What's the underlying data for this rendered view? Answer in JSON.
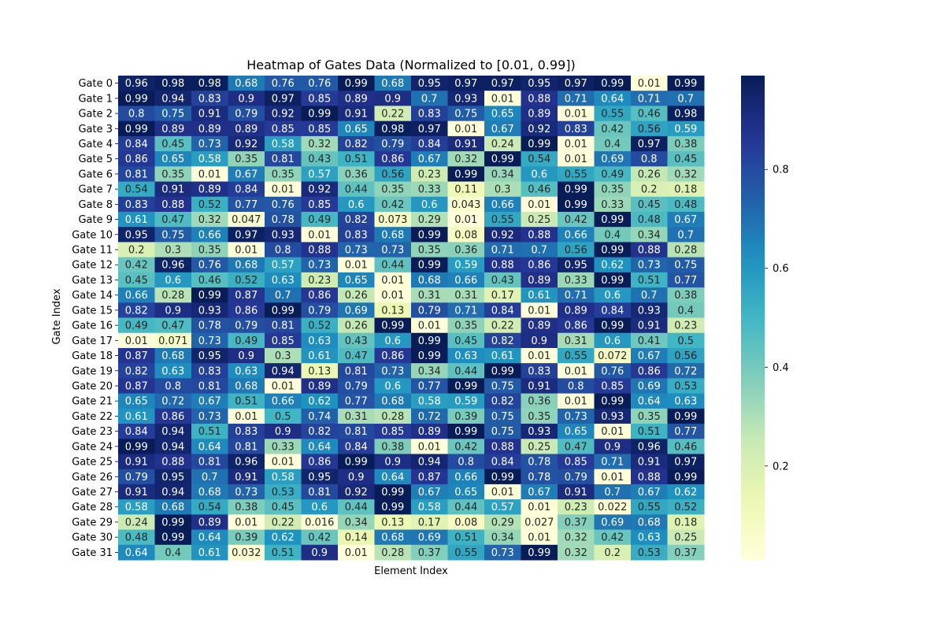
{
  "chart_data": {
    "type": "heatmap",
    "title": "Heatmap of Gates Data (Normalized to [0.01, 0.99])",
    "xlabel": "Element Index",
    "ylabel": "Gate Index",
    "rows": [
      "Gate 0",
      "Gate 1",
      "Gate 2",
      "Gate 3",
      "Gate 4",
      "Gate 5",
      "Gate 6",
      "Gate 7",
      "Gate 8",
      "Gate 9",
      "Gate 10",
      "Gate 11",
      "Gate 12",
      "Gate 13",
      "Gate 14",
      "Gate 15",
      "Gate 16",
      "Gate 17",
      "Gate 18",
      "Gate 19",
      "Gate 20",
      "Gate 21",
      "Gate 22",
      "Gate 23",
      "Gate 24",
      "Gate 25",
      "Gate 26",
      "Gate 27",
      "Gate 28",
      "Gate 29",
      "Gate 30",
      "Gate 31"
    ],
    "values": [
      [
        0.96,
        0.98,
        0.98,
        0.68,
        0.76,
        0.76,
        0.99,
        0.68,
        0.95,
        0.97,
        0.97,
        0.95,
        0.97,
        0.99,
        0.01,
        0.99
      ],
      [
        0.99,
        0.94,
        0.83,
        0.9,
        0.97,
        0.85,
        0.89,
        0.9,
        0.7,
        0.93,
        0.01,
        0.88,
        0.71,
        0.64,
        0.71,
        0.7
      ],
      [
        0.8,
        0.75,
        0.91,
        0.79,
        0.92,
        0.99,
        0.91,
        0.22,
        0.83,
        0.75,
        0.65,
        0.89,
        0.01,
        0.55,
        0.46,
        0.98
      ],
      [
        0.99,
        0.89,
        0.89,
        0.89,
        0.85,
        0.85,
        0.65,
        0.98,
        0.97,
        0.01,
        0.67,
        0.92,
        0.83,
        0.42,
        0.56,
        0.59
      ],
      [
        0.84,
        0.45,
        0.73,
        0.92,
        0.58,
        0.32,
        0.82,
        0.79,
        0.84,
        0.91,
        0.24,
        0.99,
        0.01,
        0.4,
        0.97,
        0.38
      ],
      [
        0.86,
        0.65,
        0.58,
        0.35,
        0.81,
        0.43,
        0.51,
        0.86,
        0.67,
        0.32,
        0.99,
        0.54,
        0.01,
        0.69,
        0.8,
        0.45
      ],
      [
        0.81,
        0.35,
        0.01,
        0.67,
        0.35,
        0.57,
        0.36,
        0.56,
        0.23,
        0.99,
        0.34,
        0.6,
        0.55,
        0.49,
        0.26,
        0.32
      ],
      [
        0.54,
        0.91,
        0.89,
        0.84,
        0.01,
        0.92,
        0.44,
        0.35,
        0.33,
        0.11,
        0.3,
        0.46,
        0.99,
        0.35,
        0.2,
        0.18
      ],
      [
        0.83,
        0.88,
        0.52,
        0.77,
        0.76,
        0.85,
        0.6,
        0.42,
        0.6,
        0.043,
        0.66,
        0.01,
        0.99,
        0.33,
        0.45,
        0.48
      ],
      [
        0.61,
        0.47,
        0.32,
        0.047,
        0.78,
        0.49,
        0.82,
        0.073,
        0.29,
        0.01,
        0.55,
        0.25,
        0.42,
        0.99,
        0.48,
        0.67
      ],
      [
        0.95,
        0.75,
        0.66,
        0.97,
        0.93,
        0.01,
        0.83,
        0.68,
        0.99,
        0.08,
        0.92,
        0.88,
        0.66,
        0.4,
        0.34,
        0.7
      ],
      [
        0.2,
        0.3,
        0.35,
        0.01,
        0.8,
        0.88,
        0.73,
        0.73,
        0.35,
        0.36,
        0.71,
        0.7,
        0.56,
        0.99,
        0.88,
        0.28
      ],
      [
        0.42,
        0.96,
        0.76,
        0.68,
        0.57,
        0.73,
        0.01,
        0.44,
        0.99,
        0.59,
        0.88,
        0.86,
        0.95,
        0.62,
        0.73,
        0.75
      ],
      [
        0.45,
        0.6,
        0.46,
        0.52,
        0.63,
        0.23,
        0.65,
        0.01,
        0.68,
        0.66,
        0.43,
        0.89,
        0.33,
        0.99,
        0.51,
        0.77
      ],
      [
        0.66,
        0.28,
        0.99,
        0.87,
        0.7,
        0.86,
        0.26,
        0.01,
        0.31,
        0.31,
        0.17,
        0.61,
        0.71,
        0.6,
        0.7,
        0.38
      ],
      [
        0.82,
        0.9,
        0.93,
        0.86,
        0.99,
        0.79,
        0.69,
        0.13,
        0.79,
        0.71,
        0.84,
        0.01,
        0.89,
        0.84,
        0.93,
        0.4
      ],
      [
        0.49,
        0.47,
        0.78,
        0.79,
        0.81,
        0.52,
        0.26,
        0.99,
        0.01,
        0.35,
        0.22,
        0.89,
        0.86,
        0.99,
        0.91,
        0.23
      ],
      [
        0.01,
        0.071,
        0.73,
        0.49,
        0.85,
        0.63,
        0.43,
        0.6,
        0.99,
        0.45,
        0.82,
        0.9,
        0.31,
        0.6,
        0.41,
        0.5
      ],
      [
        0.87,
        0.68,
        0.95,
        0.9,
        0.3,
        0.61,
        0.47,
        0.86,
        0.99,
        0.63,
        0.61,
        0.01,
        0.55,
        0.072,
        0.67,
        0.56
      ],
      [
        0.82,
        0.63,
        0.83,
        0.63,
        0.94,
        0.13,
        0.81,
        0.73,
        0.34,
        0.44,
        0.99,
        0.83,
        0.01,
        0.76,
        0.86,
        0.72
      ],
      [
        0.87,
        0.8,
        0.81,
        0.68,
        0.01,
        0.89,
        0.79,
        0.6,
        0.77,
        0.99,
        0.75,
        0.91,
        0.8,
        0.85,
        0.69,
        0.53
      ],
      [
        0.65,
        0.72,
        0.67,
        0.51,
        0.66,
        0.62,
        0.77,
        0.68,
        0.58,
        0.59,
        0.82,
        0.36,
        0.01,
        0.99,
        0.64,
        0.63
      ],
      [
        0.61,
        0.86,
        0.73,
        0.01,
        0.5,
        0.74,
        0.31,
        0.28,
        0.72,
        0.39,
        0.75,
        0.35,
        0.73,
        0.93,
        0.35,
        0.99
      ],
      [
        0.84,
        0.94,
        0.51,
        0.83,
        0.9,
        0.82,
        0.81,
        0.85,
        0.89,
        0.99,
        0.75,
        0.93,
        0.65,
        0.01,
        0.51,
        0.77
      ],
      [
        0.99,
        0.94,
        0.64,
        0.81,
        0.33,
        0.64,
        0.84,
        0.38,
        0.01,
        0.42,
        0.88,
        0.25,
        0.47,
        0.9,
        0.96,
        0.46
      ],
      [
        0.91,
        0.88,
        0.81,
        0.96,
        0.01,
        0.86,
        0.99,
        0.9,
        0.94,
        0.8,
        0.84,
        0.78,
        0.85,
        0.71,
        0.91,
        0.97
      ],
      [
        0.79,
        0.95,
        0.7,
        0.91,
        0.58,
        0.95,
        0.9,
        0.64,
        0.87,
        0.66,
        0.99,
        0.78,
        0.79,
        0.01,
        0.88,
        0.99
      ],
      [
        0.91,
        0.94,
        0.68,
        0.73,
        0.53,
        0.81,
        0.92,
        0.99,
        0.67,
        0.65,
        0.01,
        0.67,
        0.91,
        0.7,
        0.67,
        0.62
      ],
      [
        0.58,
        0.68,
        0.54,
        0.38,
        0.45,
        0.6,
        0.44,
        0.99,
        0.58,
        0.44,
        0.57,
        0.01,
        0.23,
        0.022,
        0.55,
        0.52
      ],
      [
        0.24,
        0.99,
        0.89,
        0.01,
        0.22,
        0.016,
        0.34,
        0.13,
        0.17,
        0.08,
        0.29,
        0.027,
        0.37,
        0.69,
        0.68,
        0.18
      ],
      [
        0.48,
        0.99,
        0.64,
        0.39,
        0.62,
        0.42,
        0.14,
        0.68,
        0.69,
        0.51,
        0.34,
        0.01,
        0.32,
        0.42,
        0.63,
        0.25
      ],
      [
        0.64,
        0.4,
        0.61,
        0.032,
        0.51,
        0.9,
        0.01,
        0.28,
        0.37,
        0.55,
        0.73,
        0.99,
        0.32,
        0.2,
        0.53,
        0.37
      ]
    ],
    "colormap": "YlGnBu",
    "colorbar": {
      "ticks": [
        "0.2",
        "0.4",
        "0.6",
        "0.8"
      ],
      "range": [
        0.01,
        0.99
      ]
    }
  }
}
